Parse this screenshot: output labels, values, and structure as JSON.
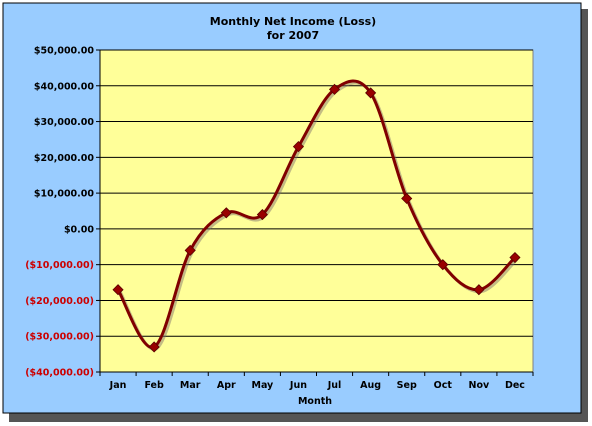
{
  "chart_data": {
    "type": "line",
    "title_line1": "Monthly Net Income (Loss)",
    "title_line2": "for 2007",
    "xlabel": "Month",
    "ylabel": "",
    "categories": [
      "Jan",
      "Feb",
      "Mar",
      "Apr",
      "May",
      "Jun",
      "Jul",
      "Aug",
      "Sep",
      "Oct",
      "Nov",
      "Dec"
    ],
    "values": [
      -17000,
      -33000,
      -6000,
      4500,
      4000,
      23000,
      39000,
      38000,
      8500,
      -10000,
      -17000,
      -8000
    ],
    "ylim": [
      -40000,
      50000
    ],
    "yticks": [
      {
        "value": 50000,
        "label": "$50,000.00"
      },
      {
        "value": 40000,
        "label": "$40,000.00"
      },
      {
        "value": 30000,
        "label": "$30,000.00"
      },
      {
        "value": 20000,
        "label": "$20,000.00"
      },
      {
        "value": 10000,
        "label": "$10,000.00"
      },
      {
        "value": 0,
        "label": "$0.00"
      },
      {
        "value": -10000,
        "label": "($10,000.00)"
      },
      {
        "value": -20000,
        "label": "($20,000.00)"
      },
      {
        "value": -30000,
        "label": "($30,000.00)"
      },
      {
        "value": -40000,
        "label": "($40,000.00)"
      }
    ],
    "grid": true,
    "legend": "none",
    "colors": {
      "background": "#99ccff",
      "plot_area": "#ffff99",
      "line": "#800000",
      "marker": "#990000",
      "negative_label": "#cc0000",
      "positive_label": "#000000"
    }
  }
}
